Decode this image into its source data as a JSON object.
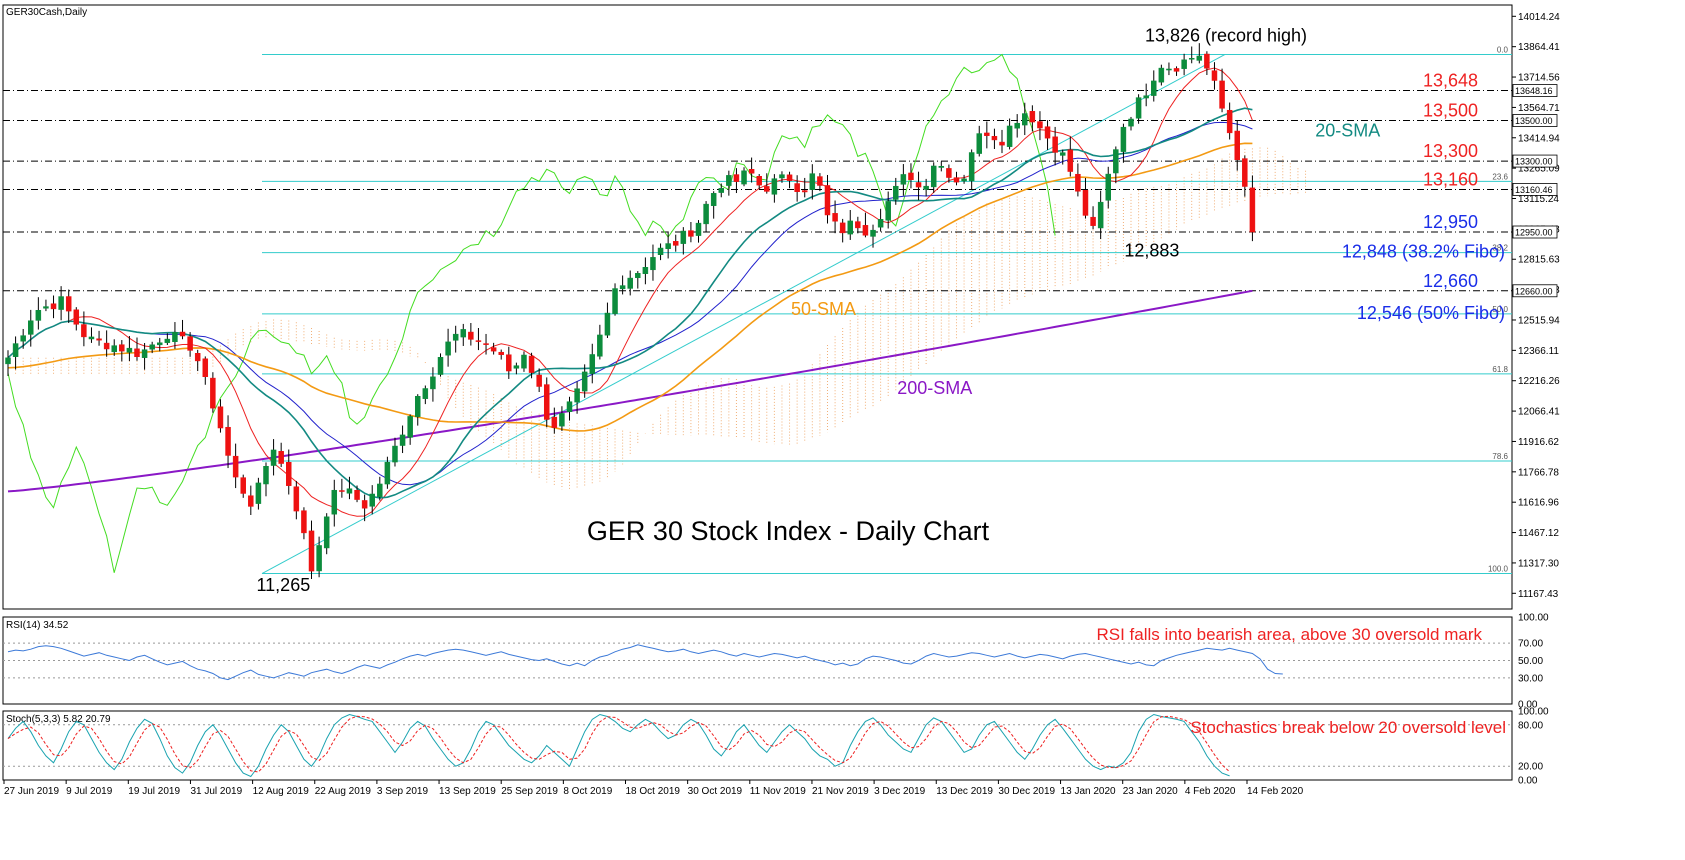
{
  "header": {
    "main_label": "GER30Cash,Daily",
    "rsi_label": "RSI(14) 34.52",
    "stoch_label": "Stoch(5,3,3) 5.82 20.79"
  },
  "title": "GER 30 Stock Index - Daily Chart",
  "colors": {
    "bull": "#0c8c3c",
    "bear": "#ee1111",
    "sma20": "#138a82",
    "sma50": "#f39a13",
    "sma200": "#8a18c6",
    "tenkan": "#ee2222",
    "kijun": "#2222cc",
    "chikou": "#44dd22",
    "fibo": "#33cccc",
    "cloud": "#f0a86a",
    "rsi_line": "#3d7ad8",
    "stoch_main": "#1aa3b0",
    "stoch_signal": "#ee2222",
    "level_red": "#ee2222",
    "level_blue": "#1a2ee8",
    "level_black": "#000000"
  },
  "chart_data": {
    "type": "candlestick",
    "y_ticks": [
      "14014.24",
      "13864.41",
      "13714.56",
      "13564.71",
      "13414.94",
      "13265.09",
      "13115.24",
      "12965.48",
      "12815.63",
      "12665.78",
      "12515.94",
      "12366.11",
      "12216.26",
      "12066.41",
      "11916.62",
      "11766.78",
      "11616.96",
      "11467.12",
      "11317.30",
      "11167.43"
    ],
    "ylim": [
      11090,
      14070
    ],
    "x_labels": [
      "27 Jun 2019",
      "9 Jul 2019",
      "19 Jul 2019",
      "31 Jul 2019",
      "12 Aug 2019",
      "22 Aug 2019",
      "3 Sep 2019",
      "13 Sep 2019",
      "25 Sep 2019",
      "8 Oct 2019",
      "18 Oct 2019",
      "30 Oct 2019",
      "11 Nov 2019",
      "21 Nov 2019",
      "3 Dec 2019",
      "13 Dec 2019",
      "30 Dec 2019",
      "13 Jan 2020",
      "23 Jan 2020",
      "4 Feb 2020",
      "14 Feb 2020"
    ],
    "levels": [
      {
        "value": 13648,
        "label": "13,648",
        "tag": "13648.16",
        "color": "red",
        "style": "dashdot"
      },
      {
        "value": 13500,
        "label": "13,500",
        "tag": "13500.00",
        "color": "red",
        "style": "dashdot"
      },
      {
        "value": 13300,
        "label": "13,300",
        "tag": "13300.00",
        "color": "red",
        "style": "dashdot"
      },
      {
        "value": 13160,
        "label": "13,160",
        "tag": "13160.46",
        "color": "red",
        "style": "dashdot"
      },
      {
        "value": 12950,
        "label": "12,950",
        "tag": "12950.00",
        "color": "blue",
        "style": "dashdot"
      },
      {
        "value": 12660,
        "label": "12,660",
        "tag": "12660.00",
        "color": "blue",
        "style": "dashdot"
      }
    ],
    "fibo_levels": [
      {
        "value": 13826,
        "label": "0.0"
      },
      {
        "value": 13200,
        "label": "23.6"
      },
      {
        "value": 12848,
        "label": "38.2"
      },
      {
        "value": 12546,
        "label": "50.0"
      },
      {
        "value": 12250,
        "label": "61.8"
      },
      {
        "value": 11820,
        "label": "78.6"
      },
      {
        "value": 11265,
        "label": "100.0"
      }
    ],
    "fibo_text": [
      {
        "value": 12848,
        "label": "12,848 (38.2% Fibo)"
      },
      {
        "value": 12546,
        "label": "12,546 (50% Fibo)"
      }
    ],
    "annotations": [
      {
        "text": "13,826 (record high)",
        "x": 230,
        "y": 13890
      },
      {
        "text": "12,883",
        "x": 216,
        "y": 12830
      },
      {
        "text": "11,265",
        "x": 52,
        "y": 11180
      },
      {
        "text": "20-SMA",
        "x": 253,
        "y": 13420
      },
      {
        "text": "50-SMA",
        "x": 154,
        "y": 12540
      },
      {
        "text": "200-SMA",
        "x": 175,
        "y": 12150
      }
    ],
    "rsi": {
      "label": "RSI(14) 34.52",
      "ticks": [
        "100.00",
        "70.00",
        "50.00",
        "30.00",
        "0.00"
      ],
      "comment": "RSI falls into bearish area, above 30 oversold mark",
      "values": [
        60,
        62,
        61,
        63,
        66,
        67,
        66,
        64,
        61,
        58,
        55,
        57,
        59,
        56,
        54,
        52,
        50,
        54,
        56,
        52,
        48,
        45,
        47,
        49,
        44,
        40,
        38,
        35,
        30,
        28,
        32,
        36,
        39,
        34,
        32,
        30,
        33,
        36,
        34,
        32,
        36,
        38,
        40,
        37,
        35,
        38,
        42,
        45,
        43,
        41,
        45,
        48,
        52,
        55,
        57,
        55,
        58,
        60,
        62,
        63,
        62,
        60,
        58,
        56,
        58,
        60,
        57,
        55,
        53,
        51,
        50,
        52,
        49,
        46,
        44,
        47,
        44,
        50,
        54,
        56,
        60,
        63,
        65,
        68,
        66,
        64,
        62,
        60,
        61,
        63,
        60,
        58,
        60,
        62,
        60,
        57,
        55,
        58,
        56,
        54,
        56,
        58,
        57,
        55,
        53,
        55,
        52,
        50,
        48,
        45,
        47,
        44,
        46,
        52,
        55,
        54,
        52,
        50,
        47,
        46,
        50,
        55,
        58,
        56,
        54,
        55,
        57,
        59,
        58,
        56,
        54,
        56,
        58,
        55,
        53,
        55,
        57,
        56,
        54,
        52,
        55,
        57,
        58,
        56,
        54,
        52,
        50,
        48,
        46,
        48,
        45,
        44,
        50,
        53,
        56,
        58,
        60,
        62,
        64,
        63,
        62,
        64,
        62,
        60,
        58,
        52,
        40,
        35,
        34.5
      ]
    },
    "stoch": {
      "label": "Stoch(5,3,3) 5.82 20.79",
      "ticks": [
        "100.00",
        "80.00",
        "20.00",
        "0.00"
      ],
      "comment": "Stochastics break below 20 oversold level",
      "main": [
        60,
        75,
        85,
        70,
        50,
        35,
        25,
        45,
        70,
        85,
        80,
        60,
        40,
        25,
        15,
        30,
        55,
        75,
        88,
        82,
        60,
        35,
        18,
        10,
        25,
        50,
        70,
        80,
        65,
        45,
        25,
        10,
        5,
        20,
        45,
        65,
        80,
        70,
        50,
        30,
        20,
        35,
        60,
        80,
        90,
        95,
        92,
        88,
        85,
        70,
        55,
        40,
        55,
        75,
        85,
        78,
        60,
        45,
        30,
        20,
        25,
        45,
        70,
        85,
        80,
        65,
        50,
        40,
        30,
        25,
        35,
        50,
        40,
        30,
        20,
        45,
        70,
        88,
        95,
        92,
        85,
        75,
        70,
        80,
        88,
        82,
        70,
        60,
        65,
        80,
        88,
        82,
        65,
        45,
        35,
        50,
        70,
        80,
        65,
        50,
        40,
        55,
        70,
        80,
        70,
        60,
        45,
        35,
        30,
        20,
        25,
        50,
        70,
        85,
        90,
        80,
        65,
        55,
        45,
        40,
        60,
        80,
        90,
        85,
        70,
        55,
        40,
        45,
        65,
        80,
        85,
        70,
        55,
        40,
        30,
        45,
        65,
        80,
        88,
        75,
        60,
        45,
        30,
        20,
        15,
        20,
        18,
        25,
        40,
        70,
        88,
        95,
        92,
        90,
        88,
        85,
        70,
        55,
        35,
        20,
        10,
        6
      ]
    },
    "bars": []
  },
  "series_notes": [
    "20-SMA",
    "50-SMA",
    "200-SMA"
  ]
}
